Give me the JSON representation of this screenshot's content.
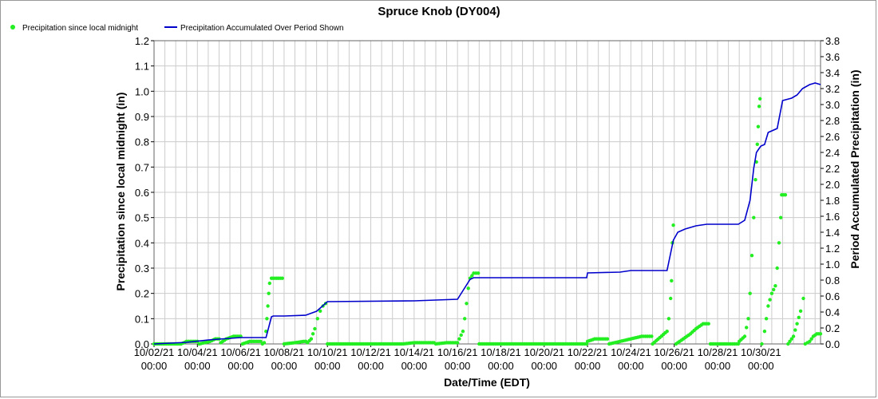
{
  "chart_data": {
    "type": "line",
    "title": "Spruce Knob (DY004)",
    "xlabel": "Date/Time (EDT)",
    "ylabel_left": "Precipitation since local midnight (in)",
    "ylabel_right": "Period Accumulated Precipitation (in)",
    "xlim": [
      "2021-10-02 00:00",
      "2021-11-01 18:00"
    ],
    "ylim_left": [
      0,
      1.2
    ],
    "ylim_right": [
      0,
      3.8
    ],
    "grid": true,
    "legend_placement": "top-left",
    "x_ticks": [
      {
        "date": "10/02/21",
        "time": "00:00"
      },
      {
        "date": "10/04/21",
        "time": "00:00"
      },
      {
        "date": "10/06/21",
        "time": "00:00"
      },
      {
        "date": "10/08/21",
        "time": "00:00"
      },
      {
        "date": "10/10/21",
        "time": "00:00"
      },
      {
        "date": "10/12/21",
        "time": "00:00"
      },
      {
        "date": "10/14/21",
        "time": "00:00"
      },
      {
        "date": "10/16/21",
        "time": "00:00"
      },
      {
        "date": "10/18/21",
        "time": "00:00"
      },
      {
        "date": "10/20/21",
        "time": "00:00"
      },
      {
        "date": "10/22/21",
        "time": "00:00"
      },
      {
        "date": "10/24/21",
        "time": "00:00"
      },
      {
        "date": "10/26/21",
        "time": "00:00"
      },
      {
        "date": "10/28/21",
        "time": "00:00"
      },
      {
        "date": "10/30/21",
        "time": "00:00"
      }
    ],
    "y_ticks_left": [
      "0.0",
      "0.1",
      "0.2",
      "0.3",
      "0.4",
      "0.5",
      "0.6",
      "0.7",
      "0.8",
      "0.9",
      "1.0",
      "1.1",
      "1.2"
    ],
    "y_ticks_right": [
      "0.0",
      "0.2",
      "0.4",
      "0.6",
      "0.8",
      "1.0",
      "1.2",
      "1.4",
      "1.6",
      "1.8",
      "2.0",
      "2.2",
      "2.4",
      "2.6",
      "2.8",
      "3.0",
      "3.2",
      "3.4",
      "3.6",
      "3.8"
    ],
    "series": [
      {
        "name": "Precipitation since local midnight",
        "axis": "left",
        "style": "points",
        "color": "#22ee22",
        "points": [
          [
            "2021-10-02 00:00",
            0
          ],
          [
            "2021-10-02 20:00",
            0
          ],
          [
            "2021-10-03 06:00",
            0
          ],
          [
            "2021-10-03 12:00",
            0.01
          ],
          [
            "2021-10-03 20:00",
            0.01
          ],
          [
            "2021-10-04 02:00",
            0
          ],
          [
            "2021-10-04 08:00",
            0.005
          ],
          [
            "2021-10-04 14:00",
            0.01
          ],
          [
            "2021-10-04 20:00",
            0.02
          ],
          [
            "2021-10-05 02:00",
            0.005
          ],
          [
            "2021-10-05 08:00",
            0.02
          ],
          [
            "2021-10-05 16:00",
            0.03
          ],
          [
            "2021-10-05 22:00",
            0.03
          ],
          [
            "2021-10-06 02:00",
            0
          ],
          [
            "2021-10-06 10:00",
            0.01
          ],
          [
            "2021-10-06 18:00",
            0.01
          ],
          [
            "2021-10-07 00:00",
            0
          ],
          [
            "2021-10-07 02:00",
            0.005
          ],
          [
            "2021-10-07 04:00",
            0.05
          ],
          [
            "2021-10-07 05:00",
            0.1
          ],
          [
            "2021-10-07 06:00",
            0.15
          ],
          [
            "2021-10-07 07:00",
            0.2
          ],
          [
            "2021-10-07 08:00",
            0.24
          ],
          [
            "2021-10-07 10:00",
            0.26
          ],
          [
            "2021-10-07 16:00",
            0.26
          ],
          [
            "2021-10-07 22:00",
            0.26
          ],
          [
            "2021-10-08 00:00",
            0
          ],
          [
            "2021-10-08 12:00",
            0.005
          ],
          [
            "2021-10-08 22:00",
            0.01
          ],
          [
            "2021-10-09 02:00",
            0.005
          ],
          [
            "2021-10-09 06:00",
            0.02
          ],
          [
            "2021-10-09 10:00",
            0.06
          ],
          [
            "2021-10-09 13:00",
            0.1
          ],
          [
            "2021-10-09 16:00",
            0.13
          ],
          [
            "2021-10-09 19:00",
            0.15
          ],
          [
            "2021-10-09 22:00",
            0.16
          ],
          [
            "2021-10-10 00:00",
            0
          ],
          [
            "2021-10-12 00:00",
            0
          ],
          [
            "2021-10-13 12:00",
            0
          ],
          [
            "2021-10-14 00:00",
            0.005
          ],
          [
            "2021-10-14 14:00",
            0.005
          ],
          [
            "2021-10-15 00:00",
            0
          ],
          [
            "2021-10-15 12:00",
            0.005
          ],
          [
            "2021-10-16 00:00",
            0.005
          ],
          [
            "2021-10-16 06:00",
            0.05
          ],
          [
            "2021-10-16 08:00",
            0.1
          ],
          [
            "2021-10-16 10:00",
            0.16
          ],
          [
            "2021-10-16 12:00",
            0.22
          ],
          [
            "2021-10-16 14:00",
            0.26
          ],
          [
            "2021-10-16 18:00",
            0.28
          ],
          [
            "2021-10-16 23:00",
            0.28
          ],
          [
            "2021-10-17 00:00",
            0
          ],
          [
            "2021-10-19 00:00",
            0
          ],
          [
            "2021-10-21 00:00",
            0
          ],
          [
            "2021-10-21 23:00",
            0
          ],
          [
            "2021-10-22 00:00",
            0.01
          ],
          [
            "2021-10-22 08:00",
            0.02
          ],
          [
            "2021-10-22 14:00",
            0.02
          ],
          [
            "2021-10-23 00:00",
            0
          ],
          [
            "2021-10-23 12:00",
            0.01
          ],
          [
            "2021-10-24 00:00",
            0.02
          ],
          [
            "2021-10-24 12:00",
            0.03
          ],
          [
            "2021-10-24 23:00",
            0.03
          ],
          [
            "2021-10-25 00:00",
            0
          ],
          [
            "2021-10-25 16:00",
            0.05
          ],
          [
            "2021-10-25 18:00",
            0.1
          ],
          [
            "2021-10-25 20:00",
            0.18
          ],
          [
            "2021-10-25 21:00",
            0.25
          ],
          [
            "2021-10-25 22:00",
            0.4
          ],
          [
            "2021-10-25 23:00",
            0.47
          ],
          [
            "2021-10-26 02:00",
            0
          ],
          [
            "2021-10-26 10:00",
            0.02
          ],
          [
            "2021-10-26 18:00",
            0.04
          ],
          [
            "2021-10-27 00:00",
            0.06
          ],
          [
            "2021-10-27 08:00",
            0.08
          ],
          [
            "2021-10-27 12:00",
            0.08
          ],
          [
            "2021-10-27 16:00",
            0
          ],
          [
            "2021-10-28 12:00",
            0
          ],
          [
            "2021-10-28 23:00",
            0
          ],
          [
            "2021-10-29 00:00",
            0.01
          ],
          [
            "2021-10-29 06:00",
            0.03
          ],
          [
            "2021-10-29 10:00",
            0.1
          ],
          [
            "2021-10-29 12:00",
            0.2
          ],
          [
            "2021-10-29 14:00",
            0.35
          ],
          [
            "2021-10-29 16:00",
            0.5
          ],
          [
            "2021-10-29 18:00",
            0.65
          ],
          [
            "2021-10-29 19:00",
            0.72
          ],
          [
            "2021-10-29 20:00",
            0.79
          ],
          [
            "2021-10-29 21:00",
            0.86
          ],
          [
            "2021-10-29 22:00",
            0.94
          ],
          [
            "2021-10-29 23:00",
            0.97
          ],
          [
            "2021-10-30 01:00",
            0
          ],
          [
            "2021-10-30 04:00",
            0.05
          ],
          [
            "2021-10-30 06:00",
            0.1
          ],
          [
            "2021-10-30 08:00",
            0.15
          ],
          [
            "2021-10-30 12:00",
            0.2
          ],
          [
            "2021-10-30 16:00",
            0.23
          ],
          [
            "2021-10-30 18:00",
            0.3
          ],
          [
            "2021-10-30 20:00",
            0.4
          ],
          [
            "2021-10-30 22:00",
            0.5
          ],
          [
            "2021-10-30 23:00",
            0.59
          ],
          [
            "2021-10-31 03:00",
            0.59
          ],
          [
            "2021-10-31 06:00",
            0
          ],
          [
            "2021-10-31 12:00",
            0.03
          ],
          [
            "2021-10-31 16:00",
            0.08
          ],
          [
            "2021-10-31 20:00",
            0.13
          ],
          [
            "2021-10-31 23:00",
            0.18
          ],
          [
            "2021-11-01 01:00",
            0
          ],
          [
            "2021-11-01 06:00",
            0.01
          ],
          [
            "2021-11-01 10:00",
            0.03
          ],
          [
            "2021-11-01 14:00",
            0.04
          ],
          [
            "2021-11-01 18:00",
            0.04
          ]
        ]
      },
      {
        "name": "Precipitation Accumulated Over Period Shown",
        "axis": "right",
        "style": "line",
        "color": "#0000cc",
        "points": [
          [
            "2021-10-02 00:00",
            0
          ],
          [
            "2021-10-03 12:00",
            0.02
          ],
          [
            "2021-10-04 12:00",
            0.05
          ],
          [
            "2021-10-05 12:00",
            0.07
          ],
          [
            "2021-10-06 00:00",
            0.08
          ],
          [
            "2021-10-07 04:00",
            0.08
          ],
          [
            "2021-10-07 10:00",
            0.34
          ],
          [
            "2021-10-07 12:00",
            0.35
          ],
          [
            "2021-10-08 00:00",
            0.35
          ],
          [
            "2021-10-09 00:00",
            0.36
          ],
          [
            "2021-10-09 12:00",
            0.41
          ],
          [
            "2021-10-09 22:00",
            0.51
          ],
          [
            "2021-10-10 00:00",
            0.53
          ],
          [
            "2021-10-14 00:00",
            0.54
          ],
          [
            "2021-10-15 00:00",
            0.55
          ],
          [
            "2021-10-16 00:00",
            0.56
          ],
          [
            "2021-10-16 14:00",
            0.81
          ],
          [
            "2021-10-16 18:00",
            0.83
          ],
          [
            "2021-10-21 23:00",
            0.83
          ],
          [
            "2021-10-22 00:00",
            0.89
          ],
          [
            "2021-10-23 12:00",
            0.9
          ],
          [
            "2021-10-24 00:00",
            0.92
          ],
          [
            "2021-10-25 16:00",
            0.92
          ],
          [
            "2021-10-25 23:00",
            1.3
          ],
          [
            "2021-10-26 04:00",
            1.4
          ],
          [
            "2021-10-26 12:00",
            1.44
          ],
          [
            "2021-10-27 00:00",
            1.48
          ],
          [
            "2021-10-27 12:00",
            1.5
          ],
          [
            "2021-10-28 23:00",
            1.5
          ],
          [
            "2021-10-29 06:00",
            1.55
          ],
          [
            "2021-10-29 12:00",
            1.8
          ],
          [
            "2021-10-29 16:00",
            2.2
          ],
          [
            "2021-10-29 19:00",
            2.4
          ],
          [
            "2021-10-29 22:00",
            2.45
          ],
          [
            "2021-10-30 00:00",
            2.48
          ],
          [
            "2021-10-30 04:00",
            2.5
          ],
          [
            "2021-10-30 08:00",
            2.65
          ],
          [
            "2021-10-30 18:00",
            2.7
          ],
          [
            "2021-10-31 00:00",
            3.05
          ],
          [
            "2021-10-31 10:00",
            3.08
          ],
          [
            "2021-10-31 16:00",
            3.12
          ],
          [
            "2021-10-31 22:00",
            3.2
          ],
          [
            "2021-11-01 06:00",
            3.25
          ],
          [
            "2021-11-01 12:00",
            3.27
          ],
          [
            "2021-11-01 18:00",
            3.25
          ]
        ]
      }
    ]
  }
}
